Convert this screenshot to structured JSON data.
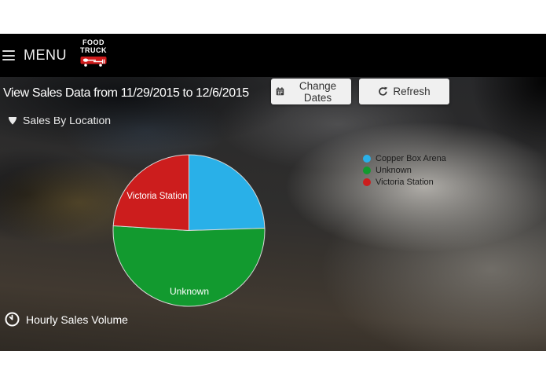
{
  "header": {
    "menu_label": "MENU",
    "logo_line1": "FOOD",
    "logo_line2": "TRUCK"
  },
  "toolbar": {
    "title": "View Sales Data from 11/29/2015 to 12/6/2015",
    "date_from": "11/29/2015",
    "date_to": "12/6/2015",
    "change_dates_label": "Change Dates",
    "refresh_label": "Refresh"
  },
  "sections": {
    "sales_by_location": "Sales By Location",
    "hourly_sales_volume": "Hourly Sales Volume"
  },
  "chart_data": {
    "type": "pie",
    "title": "Sales By Location",
    "note": "slice values are percent of whole, estimated from slice angles",
    "slices": [
      {
        "label": "Copper Box Arena",
        "value": 24.5,
        "color": "#29b0e8",
        "label_on_slice": false
      },
      {
        "label": "Unknown",
        "value": 51.5,
        "color": "#129a2f",
        "label_on_slice": true
      },
      {
        "label": "Victoria Station",
        "value": 24.0,
        "color": "#cc1d1d",
        "label_on_slice": true
      }
    ],
    "legend_position": "right",
    "slice_border_color": "#d9d9d9",
    "start_angle_deg_clockwise_from_top": 0
  },
  "icons": {
    "hamburger": "hamburger-menu-icon",
    "truck": "truck-icon",
    "calendar": "calendar-icon",
    "refresh": "refresh-icon",
    "location_pin": "location-pin-icon",
    "clock": "clock-icon"
  },
  "colors": {
    "header_bg": "#000000",
    "button_bg": "#f0f0f0",
    "button_text": "#333333",
    "title_text": "#ffffff",
    "legend_text": "#1c1c1c"
  }
}
